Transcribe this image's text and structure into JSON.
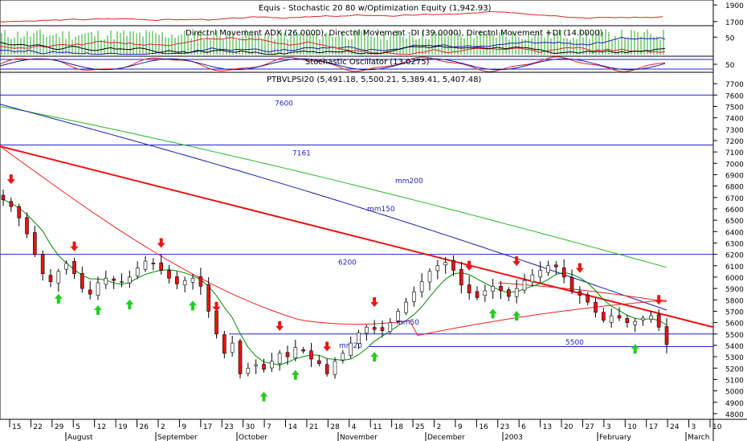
{
  "panels": {
    "equity_title": "Equis - Stochastic 20 80  w/Optimization Equity (1,942.93)",
    "dmi_title": "Directnl Movement ADX (26.0000), Directnl Movement -DI (39.0000), Directnl Movement +DI (14.0000)",
    "stoch_title": "Stochastic Oscillator (13.0275)",
    "price_title": "PTBVLPSI20 (5,491.18, 5,500.21, 5,389.41, 5,407.48)"
  },
  "colors": {
    "up_arrow": "#22cc22",
    "down_arrow": "#ee1111",
    "down_candle": "#ee1111",
    "up_candle": "#ffffff",
    "mm20": "#008800",
    "mm50": "#ee2222",
    "mm150": "#1a1aaa",
    "mm200": "#22bb22",
    "trendline": "#ee1111",
    "level_line": "#2222cc"
  },
  "chart_data": [
    {
      "type": "line",
      "panel": "equity",
      "title": "Equis - Stochastic 20 80  w/Optimization Equity (1,942.93)",
      "y_ticks": [
        "1900",
        "1700"
      ],
      "ylim": [
        1650,
        1960
      ]
    },
    {
      "type": "line",
      "panel": "dmi",
      "title": "Directnl Movement ADX (26.0000), Directnl Movement -DI (39.0000), Directnl Movement +DI (14.0000)",
      "y_ticks": [
        "50"
      ],
      "series": [
        {
          "name": "ADX",
          "last": 26
        },
        {
          "name": "-DI",
          "last": 39
        },
        {
          "name": "+DI",
          "last": 14
        }
      ]
    },
    {
      "type": "line",
      "panel": "stochastic",
      "title": "Stochastic Oscillator (13.0275)",
      "y_ticks": [
        "50"
      ],
      "series": [
        {
          "name": "Stochastic Oscillator",
          "last": 13.0275
        }
      ]
    },
    {
      "type": "candlestick",
      "panel": "price",
      "title": "PTBVLPSI20 (5,491.18, 5,500.21, 5,389.41, 5,407.48)",
      "last_bar": {
        "open": 5491.18,
        "high": 5500.21,
        "low": 5389.41,
        "close": 5407.48
      },
      "ylim": [
        4750,
        7800
      ],
      "y_ticks": [
        "7700",
        "7600",
        "7500",
        "7400",
        "7300",
        "7200",
        "7100",
        "7000",
        "6900",
        "6800",
        "6700",
        "6600",
        "6500",
        "6400",
        "6300",
        "6200",
        "6100",
        "6000",
        "5900",
        "5800",
        "5700",
        "5600",
        "5500",
        "5400",
        "5300",
        "5200",
        "5100",
        "5000",
        "4900",
        "4800"
      ],
      "x_ticks": [
        "15",
        "22",
        "29",
        "5",
        "12",
        "19",
        "26",
        "2",
        "9",
        "17",
        "23",
        "30",
        "7",
        "14",
        "21",
        "28",
        "4",
        "11",
        "18",
        "25",
        "2",
        "9",
        "16",
        "23",
        "6",
        "13",
        "20",
        "27",
        "3",
        "10",
        "17",
        "24",
        "3",
        "10"
      ],
      "months": [
        "August",
        "September",
        "October",
        "November",
        "December",
        "2003",
        "February",
        "March"
      ],
      "levels": [
        {
          "label": "7600",
          "value": 7600
        },
        {
          "label": "7161",
          "value": 7161
        },
        {
          "label": "6200",
          "value": 6200
        },
        {
          "label": "5500",
          "value": 5500
        },
        {
          "label": "",
          "value": 5389
        }
      ],
      "ma_labels": [
        "mm200",
        "mm150",
        "mm50",
        "mm20"
      ],
      "close_path": [
        [
          0,
          6680
        ],
        [
          1,
          6620
        ],
        [
          2,
          6520
        ],
        [
          3,
          6380
        ],
        [
          4,
          6200
        ],
        [
          5,
          6030
        ],
        [
          6,
          5960
        ],
        [
          7,
          6050
        ],
        [
          8,
          6120
        ],
        [
          9,
          6030
        ],
        [
          10,
          5900
        ],
        [
          11,
          5850
        ],
        [
          12,
          5950
        ],
        [
          13,
          5990
        ],
        [
          14,
          5970
        ],
        [
          15,
          5960
        ],
        [
          16,
          6000
        ],
        [
          17,
          6080
        ],
        [
          18,
          6140
        ],
        [
          19,
          6120
        ],
        [
          20,
          6060
        ],
        [
          21,
          5990
        ],
        [
          22,
          5940
        ],
        [
          23,
          5970
        ],
        [
          24,
          5990
        ],
        [
          25,
          5920
        ],
        [
          26,
          5700
        ],
        [
          27,
          5500
        ],
        [
          28,
          5330
        ],
        [
          29,
          5420
        ],
        [
          30,
          5150
        ],
        [
          31,
          5200
        ],
        [
          32,
          5230
        ],
        [
          33,
          5190
        ],
        [
          34,
          5260
        ],
        [
          35,
          5330
        ],
        [
          36,
          5300
        ],
        [
          37,
          5380
        ],
        [
          38,
          5350
        ],
        [
          39,
          5280
        ],
        [
          40,
          5240
        ],
        [
          41,
          5150
        ],
        [
          42,
          5260
        ],
        [
          43,
          5330
        ],
        [
          44,
          5420
        ],
        [
          45,
          5510
        ],
        [
          46,
          5560
        ],
        [
          47,
          5540
        ],
        [
          48,
          5530
        ],
        [
          49,
          5600
        ],
        [
          50,
          5700
        ],
        [
          51,
          5780
        ],
        [
          52,
          5870
        ],
        [
          53,
          5960
        ],
        [
          54,
          6050
        ],
        [
          55,
          6100
        ],
        [
          56,
          6130
        ],
        [
          57,
          6060
        ],
        [
          58,
          5930
        ],
        [
          59,
          5860
        ],
        [
          60,
          5820
        ],
        [
          61,
          5880
        ],
        [
          62,
          5920
        ],
        [
          63,
          5880
        ],
        [
          64,
          5830
        ],
        [
          65,
          5900
        ],
        [
          66,
          5970
        ],
        [
          67,
          6020
        ],
        [
          68,
          6060
        ],
        [
          69,
          6100
        ],
        [
          70,
          6090
        ],
        [
          71,
          6000
        ],
        [
          72,
          5880
        ],
        [
          73,
          5840
        ],
        [
          74,
          5780
        ],
        [
          75,
          5690
        ],
        [
          76,
          5620
        ],
        [
          77,
          5660
        ],
        [
          78,
          5640
        ],
        [
          79,
          5600
        ],
        [
          80,
          5610
        ],
        [
          81,
          5640
        ],
        [
          82,
          5660
        ],
        [
          83,
          5560
        ],
        [
          84,
          5407
        ]
      ],
      "up_signals": [
        7,
        12,
        16,
        24,
        33,
        37,
        47,
        62,
        65,
        80
      ],
      "down_signals": [
        1,
        9,
        20,
        27,
        35,
        41,
        47,
        59,
        65,
        73,
        83
      ]
    }
  ]
}
